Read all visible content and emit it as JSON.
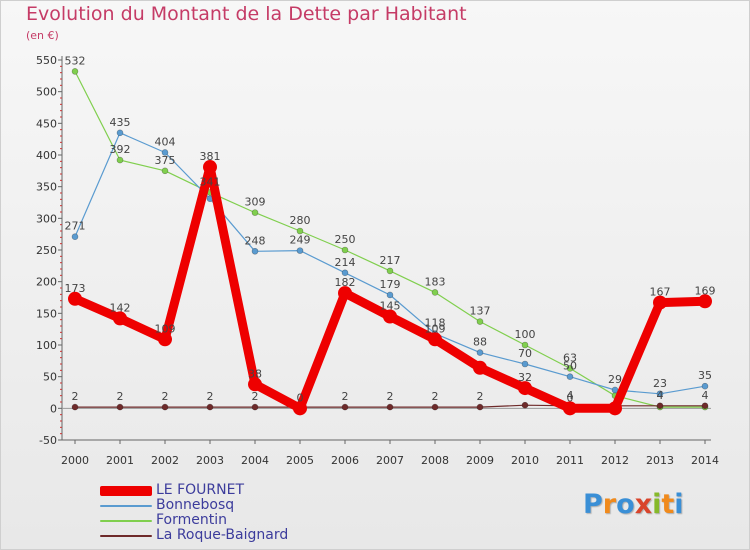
{
  "title": "Evolution du Montant de la Dette par Habitant",
  "subtitle": "(en €)",
  "logo": {
    "letters": [
      "P",
      "r",
      "o",
      "x",
      "i",
      "t",
      "i"
    ],
    "colors": [
      "#3a8fd6",
      "#f08a1c",
      "#3a8fd6",
      "#d9442b",
      "#86b92a",
      "#f08a1c",
      "#3a8fd6"
    ]
  },
  "chart_data": {
    "type": "line",
    "title": "Evolution du Montant de la Dette par Habitant",
    "subtitle": "(en €)",
    "xlabel": "",
    "ylabel": "",
    "x": [
      "2000",
      "2001",
      "2002",
      "2003",
      "2004",
      "2005",
      "2006",
      "2007",
      "2008",
      "2009",
      "2010",
      "2011",
      "2012",
      "2013",
      "2014"
    ],
    "ylim": [
      -50,
      550
    ],
    "yticks": [
      -50,
      0,
      50,
      100,
      150,
      200,
      250,
      300,
      350,
      400,
      450,
      500,
      550
    ],
    "grid": false,
    "legend": "bottom-left",
    "series": [
      {
        "name": "Formentin",
        "color": "#80cf4e",
        "values": [
          532,
          392,
          375,
          341,
          309,
          280,
          250,
          217,
          183,
          137,
          100,
          63,
          20,
          2,
          2
        ],
        "labels": [
          "532",
          "392",
          "375",
          "341",
          "309",
          "280",
          "250",
          "217",
          "183",
          "137",
          "100",
          "63",
          "",
          "",
          ""
        ]
      },
      {
        "name": "Bonnebosq",
        "color": "#5a9bd0",
        "values": [
          271,
          435,
          404,
          331,
          248,
          249,
          214,
          179,
          118,
          88,
          70,
          50,
          29,
          23,
          35
        ],
        "labels": [
          "271",
          "435",
          "404",
          "",
          "248",
          "249",
          "214",
          "179",
          "118",
          "88",
          "70",
          "50",
          "29",
          "23",
          "35"
        ]
      },
      {
        "name": "La Roque-Baignard",
        "color": "#6e2a2a",
        "values": [
          2,
          2,
          2,
          2,
          2,
          2,
          2,
          2,
          2,
          2,
          5,
          4,
          4,
          4,
          4
        ],
        "labels": [
          "2",
          "2",
          "2",
          "2",
          "2",
          "",
          "2",
          "2",
          "2",
          "2",
          "",
          "4",
          "",
          "4",
          "4"
        ]
      },
      {
        "name": "LE FOURNET",
        "color": "#ee0000",
        "values": [
          173,
          142,
          109,
          381,
          38,
          0,
          182,
          145,
          109,
          64,
          32,
          0,
          0,
          167,
          169
        ],
        "labels": [
          "173",
          "142",
          "109",
          "381",
          "38",
          "0",
          "182",
          "145",
          "109",
          "",
          "32",
          "0",
          "",
          "167",
          "169"
        ]
      }
    ],
    "legend_order": [
      "LE FOURNET",
      "Bonnebosq",
      "Formentin",
      "La Roque-Baignard"
    ]
  }
}
